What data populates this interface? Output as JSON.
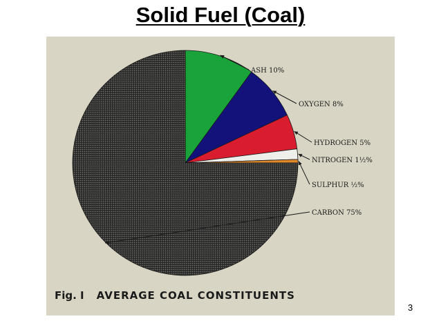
{
  "slide": {
    "title": "Solid Fuel (Coal)",
    "page_number": "3"
  },
  "figure": {
    "number": "Fig. I",
    "caption": "AVERAGE COAL CONSTITUENTS"
  },
  "chart_data": {
    "type": "pie",
    "title": "",
    "slices": [
      {
        "label": "ASH 10%",
        "value": 10,
        "color": "#1aa33a"
      },
      {
        "label": "OXYGEN 8%",
        "value": 8,
        "color": "#12127a"
      },
      {
        "label": "HYDROGEN 5%",
        "value": 5,
        "color": "#d91c2e"
      },
      {
        "label": "NITROGEN 1½%",
        "value": 1.5,
        "color": "#eeeeea"
      },
      {
        "label": "SULPHUR ½%",
        "value": 0.5,
        "color": "#e08a2c"
      },
      {
        "label": "CARBON 75%",
        "value": 75,
        "color": "#2b2b2b"
      }
    ],
    "start": "12 o'clock",
    "direction": "clockwise",
    "carbon_pattern": "dotted halftone"
  }
}
